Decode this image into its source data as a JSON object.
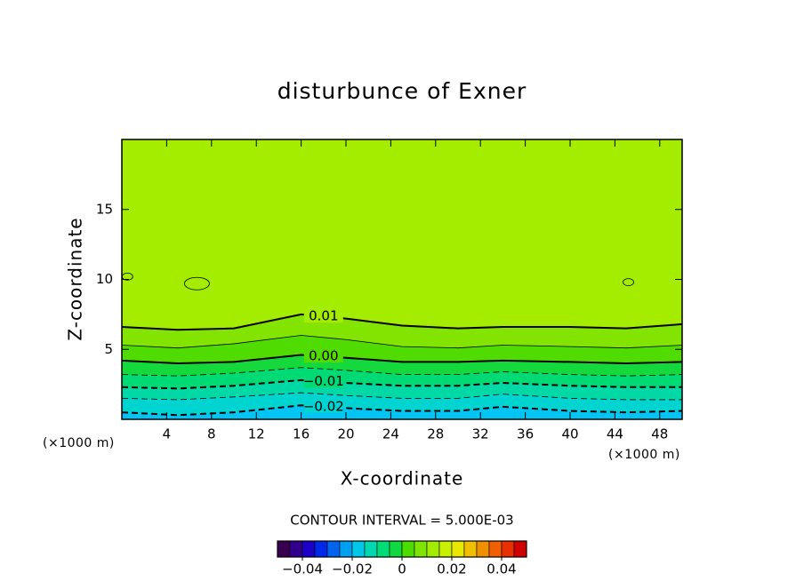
{
  "chart_data": {
    "type": "contour",
    "title": "disturbunce of Exner",
    "x_label": "X-coordinate",
    "y_label": "Z-coordinate",
    "x_unit": "(×1000 m)",
    "y_unit": "(×1000 m)",
    "xlim": [
      0,
      50
    ],
    "ylim": [
      0,
      20
    ],
    "xticks": [
      4,
      8,
      12,
      16,
      20,
      24,
      28,
      32,
      36,
      40,
      44,
      48
    ],
    "yticks": [
      5,
      10,
      15
    ],
    "background": "#a4ec00",
    "x": [
      0,
      5,
      10,
      16,
      20,
      25,
      30,
      34,
      40,
      45,
      50
    ],
    "contours": [
      {
        "level": 0.01,
        "label": "0.01",
        "fill": "#82e400",
        "values": [
          6.6,
          6.4,
          6.5,
          7.5,
          7.2,
          6.7,
          6.5,
          6.6,
          6.6,
          6.5,
          6.8
        ]
      },
      {
        "level": 0.005,
        "fill": "#50dc00",
        "values": [
          5.3,
          5.1,
          5.4,
          6.0,
          5.7,
          5.2,
          5.1,
          5.3,
          5.2,
          5.1,
          5.3
        ]
      },
      {
        "level": 0.0,
        "label": "0.00",
        "fill": "#14d83c",
        "values": [
          4.2,
          4.0,
          4.1,
          4.6,
          4.4,
          4.1,
          4.1,
          4.2,
          4.1,
          4.0,
          4.1
        ]
      },
      {
        "level": -0.005,
        "fill": "#00da74",
        "values": [
          3.2,
          3.1,
          3.3,
          3.7,
          3.5,
          3.2,
          3.2,
          3.4,
          3.2,
          3.1,
          3.2
        ]
      },
      {
        "level": -0.01,
        "label": "−0.01",
        "fill": "#00d8a6",
        "values": [
          2.3,
          2.2,
          2.4,
          2.8,
          2.6,
          2.4,
          2.4,
          2.6,
          2.4,
          2.3,
          2.3
        ]
      },
      {
        "level": -0.015,
        "fill": "#00d4d0",
        "values": [
          1.5,
          1.4,
          1.6,
          1.9,
          1.7,
          1.5,
          1.5,
          1.8,
          1.5,
          1.4,
          1.4
        ]
      },
      {
        "level": -0.02,
        "label": "−0.02",
        "fill": "#00c4f4",
        "values": [
          0.5,
          0.3,
          0.5,
          1.0,
          0.8,
          0.6,
          0.6,
          0.9,
          0.6,
          0.5,
          0.6
        ]
      }
    ],
    "closed_contours": [
      {
        "level": 0.015,
        "x": 6.7,
        "y": 9.7
      },
      {
        "level": 0.015,
        "x": 45.2,
        "y": 9.8
      },
      {
        "level": 0.015,
        "x": 0.5,
        "y": 10.2
      }
    ],
    "contour_interval": "CONTOUR INTERVAL = 5.000E-03",
    "colorbar": {
      "lim": [
        -0.05,
        0.05
      ],
      "ticks": [
        {
          "value": -0.04,
          "label": "−0.04"
        },
        {
          "value": -0.02,
          "label": "−0.02"
        },
        0,
        0.02,
        0.04
      ],
      "colors": [
        "#3a0050",
        "#30008c",
        "#1c00c8",
        "#0028e8",
        "#0064f0",
        "#00a0f0",
        "#00c8e8",
        "#00d8b0",
        "#00dc78",
        "#10d840",
        "#4cdc00",
        "#7ee400",
        "#a2ec00",
        "#c8f000",
        "#e8e800",
        "#f0c000",
        "#f09000",
        "#f06000",
        "#e83000",
        "#d00000"
      ]
    }
  }
}
